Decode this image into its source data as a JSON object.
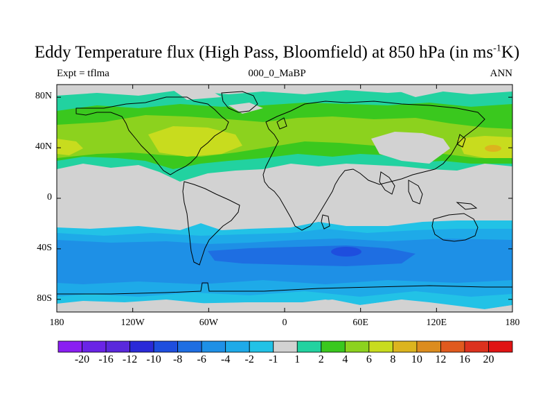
{
  "header": {
    "title_main": "Eddy Temperature flux (High Pass, Bloomfield) at 850 hPa (in ms",
    "title_sup": "-1",
    "title_end": "K)",
    "left_label": "Expt = tflma",
    "center_label": "000_0_MaBP",
    "right_label": "ANN"
  },
  "axes": {
    "lat_labels": [
      "80N",
      "40N",
      "0",
      "40S",
      "80S"
    ],
    "lat_values": [
      80,
      40,
      0,
      -40,
      -80
    ],
    "lon_labels": [
      "180",
      "120W",
      "60W",
      "0",
      "60E",
      "120E",
      "180"
    ],
    "lon_values": [
      -180,
      -120,
      -60,
      0,
      60,
      120,
      180
    ]
  },
  "colorbar": {
    "labels": [
      "-20",
      "-16",
      "-12",
      "-10",
      "-8",
      "-6",
      "-4",
      "-2",
      "-1",
      "1",
      "2",
      "4",
      "6",
      "8",
      "10",
      "12",
      "16",
      "20"
    ],
    "colors": [
      "#8a1ef2",
      "#6a24e6",
      "#5a28dc",
      "#2a2ad8",
      "#1e4ede",
      "#1e6ee2",
      "#1e90e6",
      "#1eaae8",
      "#22c2e6",
      "#d2d2d2",
      "#22d2a0",
      "#3ac81e",
      "#8cd21e",
      "#c8dc1e",
      "#dcb41e",
      "#dc8c1e",
      "#e05a1e",
      "#dc321e",
      "#e01414"
    ]
  },
  "colors": {
    "land_ocean_neutral": "#d2d2d2",
    "outline": "#000000"
  }
}
